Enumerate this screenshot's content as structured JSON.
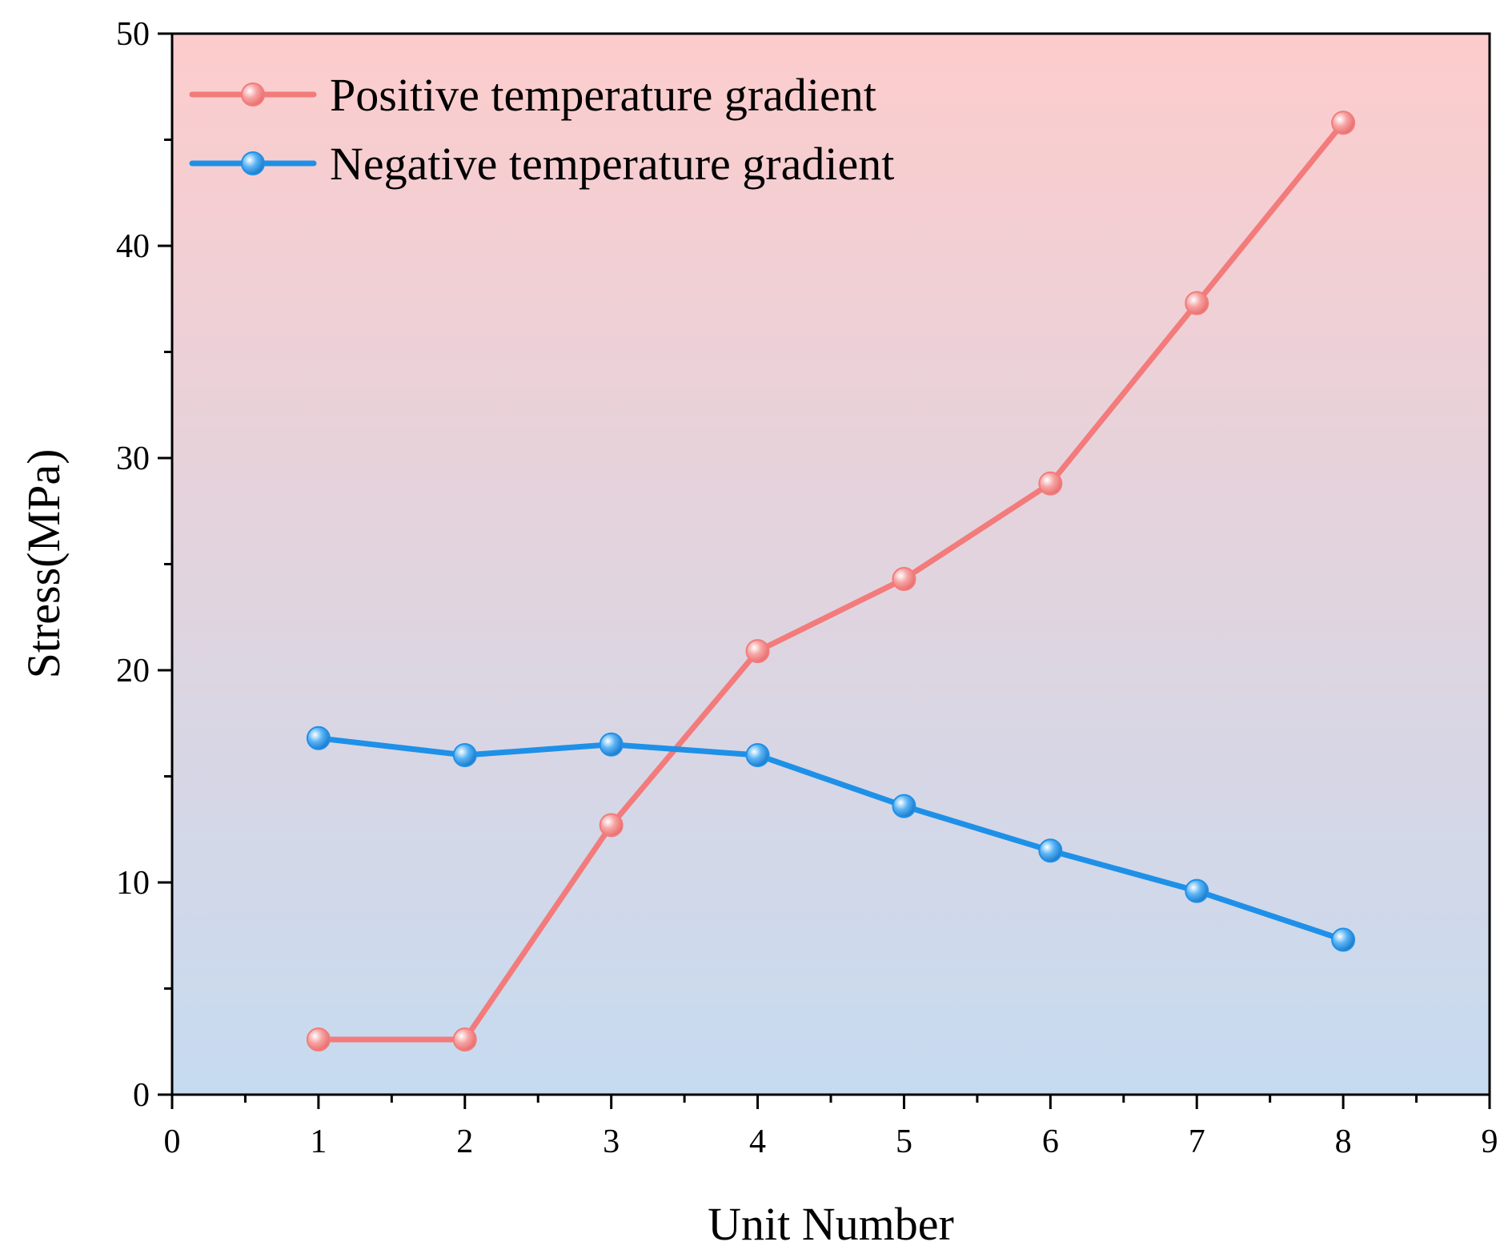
{
  "chart_data": {
    "type": "line",
    "title": "",
    "xlabel": "Unit Number",
    "ylabel": "Stress(MPa)",
    "xlim": [
      0,
      9
    ],
    "ylim": [
      0,
      50
    ],
    "x_ticks": [
      "0",
      "1",
      "2",
      "3",
      "4",
      "5",
      "6",
      "7",
      "8",
      "9"
    ],
    "y_ticks": [
      "0",
      "10",
      "20",
      "30",
      "40",
      "50"
    ],
    "grid": false,
    "legend_position": "top-left",
    "background_gradient": [
      "#fdcccc",
      "#c6dbf0"
    ],
    "x": [
      1,
      2,
      3,
      4,
      5,
      6,
      7,
      8
    ],
    "series": [
      {
        "name": "Positive temperature gradient",
        "color": "#f37b7b",
        "values": [
          2.6,
          2.6,
          12.7,
          20.9,
          24.3,
          28.8,
          37.3,
          45.8
        ]
      },
      {
        "name": "Negative temperature gradient",
        "color": "#1e90e8",
        "values": [
          16.8,
          16.0,
          16.5,
          16.0,
          13.6,
          11.5,
          9.6,
          7.3
        ]
      }
    ]
  }
}
